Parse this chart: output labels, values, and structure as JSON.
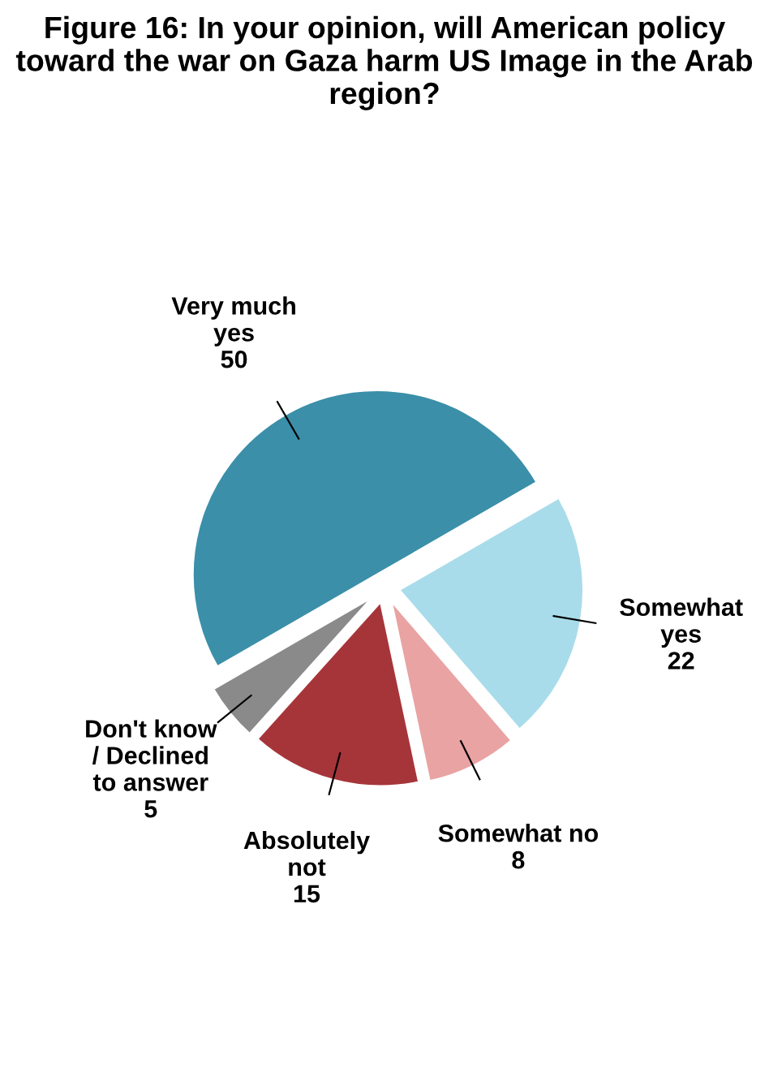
{
  "chart_data": {
    "type": "pie",
    "title": "Figure 16: In your opinion, will American policy toward the war on Gaza harm US Image in the Arab region?",
    "categories": [
      "Very much\nyes",
      "Somewhat\nyes",
      "Somewhat no",
      "Absolutely\nnot",
      "Don't know\n/ Declined\nto answer"
    ],
    "values": [
      50,
      22,
      8,
      15,
      5
    ],
    "colors": [
      "#3b8fa9",
      "#a9dcea",
      "#e9a3a3",
      "#a6353a",
      "#8a8a8a"
    ],
    "data_labels": true,
    "legend": false
  }
}
